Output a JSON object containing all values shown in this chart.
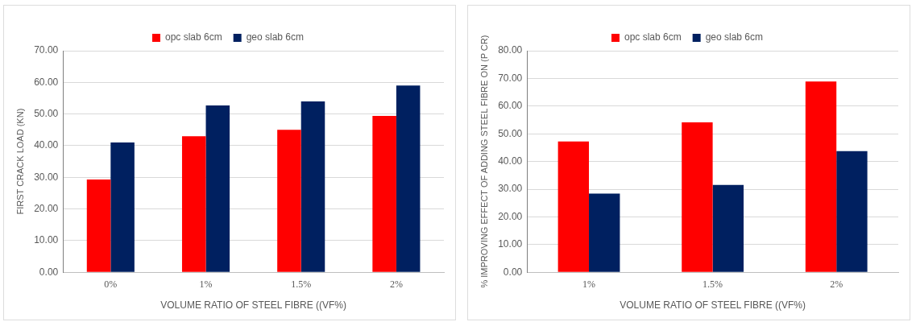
{
  "chart_data": [
    {
      "type": "bar",
      "xlabel": "VOLUME RATIO OF STEEL FIBRE ((VF%)",
      "ylabel": "FIRST CRACK LOAD (KN)",
      "categories": [
        "0%",
        "1%",
        "1.5%",
        "2%"
      ],
      "series": [
        {
          "name": "opc slab 6cm",
          "color": "#ff0000",
          "values": [
            29.3,
            43.0,
            45.0,
            49.4
          ]
        },
        {
          "name": "geo slab 6cm",
          "color": "#002060",
          "values": [
            41.0,
            52.7,
            54.0,
            59.0
          ]
        }
      ],
      "ylim": [
        0,
        70
      ],
      "yticks": [
        {
          "value": 0,
          "label": "0.00"
        },
        {
          "value": 10,
          "label": "10.00"
        },
        {
          "value": 20,
          "label": "20.00"
        },
        {
          "value": 30,
          "label": "30.00"
        },
        {
          "value": 40,
          "label": "40.00"
        },
        {
          "value": 50,
          "label": "50.00"
        },
        {
          "value": 60,
          "label": "60.00"
        },
        {
          "value": 70,
          "label": "70.00"
        }
      ],
      "grid": "y",
      "legend": "top"
    },
    {
      "type": "bar",
      "xlabel": "VOLUME RATIO OF STEEL FIBRE ((VF%)",
      "ylabel": "% IMPROVING EFFECT OF ADDING STEEL FIBRE ON (P CR)",
      "categories": [
        "1%",
        "1.5%",
        "2%"
      ],
      "series": [
        {
          "name": "opc slab 6cm",
          "color": "#ff0000",
          "values": [
            47.2,
            54.1,
            68.9
          ]
        },
        {
          "name": "geo slab 6cm",
          "color": "#002060",
          "values": [
            28.4,
            31.5,
            43.7
          ]
        }
      ],
      "ylim": [
        0,
        80
      ],
      "yticks": [
        {
          "value": 0,
          "label": "0.00"
        },
        {
          "value": 10,
          "label": "10.00"
        },
        {
          "value": 20,
          "label": "20.00"
        },
        {
          "value": 30,
          "label": "30.00"
        },
        {
          "value": 40,
          "label": "40.00"
        },
        {
          "value": 50,
          "label": "50.00"
        },
        {
          "value": 60,
          "label": "60.00"
        },
        {
          "value": 70,
          "label": "70.00"
        },
        {
          "value": 80,
          "label": "80.00"
        }
      ],
      "grid": "y",
      "legend": "top"
    }
  ]
}
